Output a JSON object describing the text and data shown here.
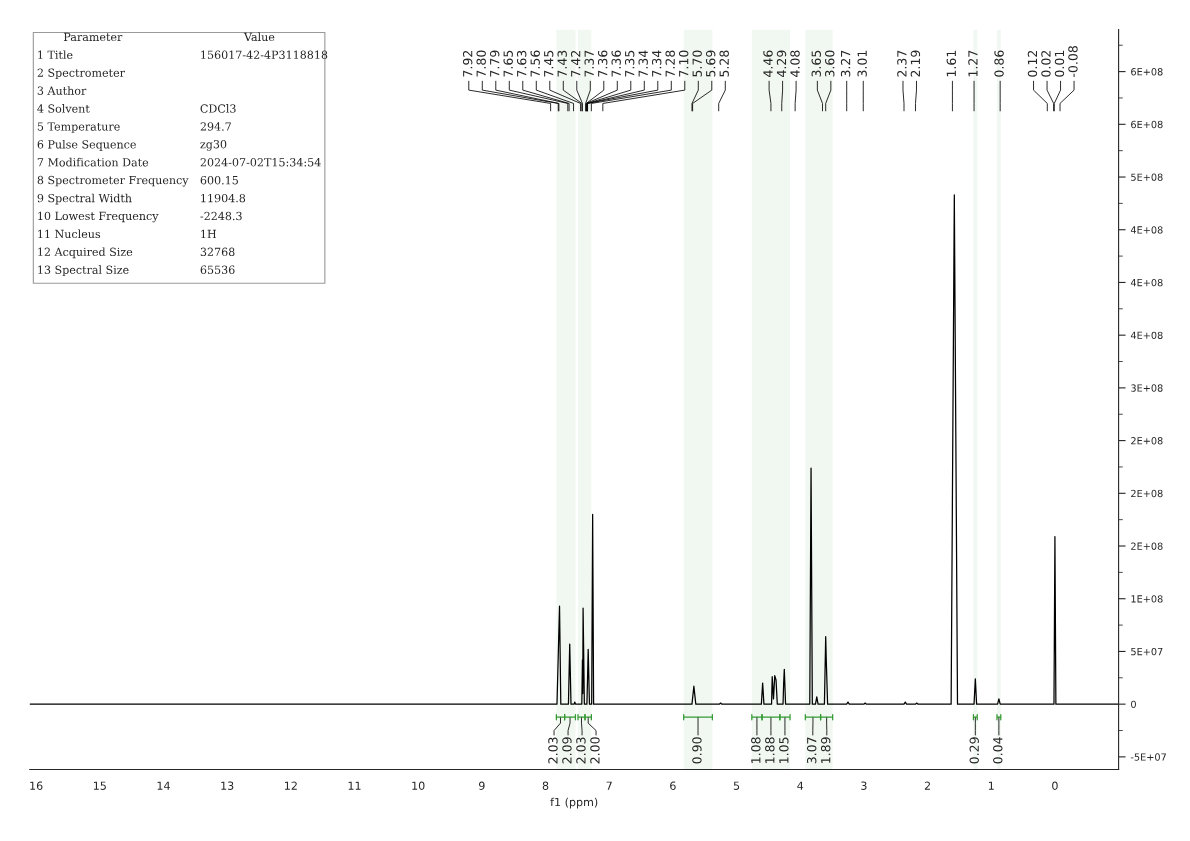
{
  "chart_data": {
    "type": "line",
    "xlabel": "f1 (ppm)",
    "xlim": [
      16.1,
      -1.0
    ],
    "xticks": [
      16,
      15,
      14,
      13,
      12,
      11,
      10,
      9,
      8,
      7,
      6,
      5,
      4,
      3,
      2,
      1,
      0
    ],
    "ylim": [
      -62000000,
      640000000
    ],
    "yticks": [
      {
        "value": -50000000,
        "label": "-5E+07"
      },
      {
        "value": -25000000,
        "label": null
      },
      {
        "value": 0,
        "label": "0"
      },
      {
        "value": 25000000,
        "label": null
      },
      {
        "value": 50000000,
        "label": "5E+07"
      },
      {
        "value": 75000000,
        "label": null
      },
      {
        "value": 100000000,
        "label": "1E+08"
      },
      {
        "value": 125000000,
        "label": null
      },
      {
        "value": 150000000,
        "label": "2E+08"
      },
      {
        "value": 175000000,
        "label": null
      },
      {
        "value": 200000000,
        "label": "2E+08"
      },
      {
        "value": 225000000,
        "label": null
      },
      {
        "value": 250000000,
        "label": "2E+08"
      },
      {
        "value": 275000000,
        "label": null
      },
      {
        "value": 300000000,
        "label": "3E+08"
      },
      {
        "value": 325000000,
        "label": null
      },
      {
        "value": 350000000,
        "label": "4E+08"
      },
      {
        "value": 375000000,
        "label": null
      },
      {
        "value": 400000000,
        "label": "4E+08"
      },
      {
        "value": 425000000,
        "label": null
      },
      {
        "value": 450000000,
        "label": "4E+08"
      },
      {
        "value": 475000000,
        "label": null
      },
      {
        "value": 500000000,
        "label": "5E+08"
      },
      {
        "value": 525000000,
        "label": null
      },
      {
        "value": 550000000,
        "label": "6E+08"
      },
      {
        "value": 575000000,
        "label": null
      },
      {
        "value": 600000000,
        "label": "6E+08"
      },
      {
        "value": 625000000,
        "label": null
      }
    ],
    "grid": false,
    "tick_labels": "xy",
    "series": [
      {
        "color": "#000000",
        "x": [
          16.1,
          7.92,
          7.82,
          7.78,
          7.76,
          7.64,
          7.62,
          7.6,
          7.55,
          7.54,
          7.53,
          7.43,
          7.42,
          7.415,
          7.41,
          7.39,
          7.35,
          7.34,
          7.33,
          7.31,
          7.275,
          7.26,
          7.245,
          7.1,
          5.7,
          5.67,
          5.64,
          5.27,
          5.25,
          5.23,
          4.61,
          4.59,
          4.57,
          4.45,
          4.44,
          4.42,
          4.4,
          4.38,
          4.36,
          4.27,
          4.26,
          4.25,
          4.23,
          4.08,
          3.85,
          3.83,
          3.81,
          3.76,
          3.74,
          3.72,
          3.62,
          3.6,
          3.59,
          3.57,
          3.27,
          3.25,
          3.23,
          3.0,
          2.98,
          2.96,
          2.37,
          2.35,
          2.33,
          2.19,
          2.17,
          2.15,
          1.63,
          1.58,
          1.53,
          1.27,
          1.25,
          1.23,
          0.9,
          0.88,
          0.86,
          0.12,
          0.015,
          0.0,
          -0.015,
          -0.08,
          -1.0
        ],
        "values": [
          0,
          0,
          0,
          93000000,
          0,
          0,
          57000000,
          0,
          0,
          2000000,
          0,
          0,
          42000000,
          10000000,
          91000000,
          0,
          0,
          24000000,
          52000000,
          0,
          0,
          180000000,
          0,
          0,
          0,
          17000000,
          0,
          0,
          1000000,
          0,
          0,
          20000000,
          0,
          0,
          26000000,
          5000000,
          27000000,
          23000000,
          0,
          0,
          20000000,
          33000000,
          0,
          0,
          0,
          224000000,
          0,
          0,
          7000000,
          0,
          0,
          64000000,
          40000000,
          0,
          0,
          2000000,
          0,
          0,
          1000000,
          0,
          0,
          2000000,
          0,
          0,
          1000000,
          0,
          0,
          483000000,
          0,
          0,
          24000000,
          0,
          0,
          5000000,
          0,
          0,
          0,
          159000000,
          0,
          0,
          0
        ]
      }
    ],
    "annotations": [
      "Parameter\tValue",
      "1 Title\t156017-42-4P3118818",
      "2 Spectrometer",
      "3 Author",
      "4 Solvent\tCDCl3",
      "5 Temperature\t294.7",
      "6 Pulse Sequence\tzg30",
      "7 Modification Date\t2024-07-02T15:34:54",
      "8 Spectrometer Frequency\t600.15",
      "9 Spectral Width\t11904.8",
      "10 Lowest Frequency\t-2248.3",
      "11 Nucleus\t1H",
      "12 Acquired Size\t32768",
      "13 Spectral Size\t65536",
      {
        "text": "7.92",
        "x": 7.92
      },
      {
        "text": "7.80",
        "x": 7.8
      },
      {
        "text": "7.79",
        "x": 7.79
      },
      {
        "text": "7.65",
        "x": 7.65
      },
      {
        "text": "7.63",
        "x": 7.63
      },
      {
        "text": "7.56",
        "x": 7.56
      },
      {
        "text": "7.45",
        "x": 7.45
      },
      {
        "text": "7.43",
        "x": 7.43
      },
      {
        "text": "7.42",
        "x": 7.42
      },
      {
        "text": "7.37",
        "x": 7.37
      },
      {
        "text": "7.36",
        "x": 7.36
      },
      {
        "text": "7.36",
        "x": 7.36
      },
      {
        "text": "7.35",
        "x": 7.35
      },
      {
        "text": "7.34",
        "x": 7.34
      },
      {
        "text": "7.34",
        "x": 7.34
      },
      {
        "text": "7.28",
        "x": 7.28
      },
      {
        "text": "7.10",
        "x": 7.1
      },
      {
        "text": "5.70",
        "x": 5.7
      },
      {
        "text": "5.69",
        "x": 5.69
      },
      {
        "text": "5.28",
        "x": 5.28
      },
      {
        "text": "4.46",
        "x": 4.46
      },
      {
        "text": "4.29",
        "x": 4.29
      },
      {
        "text": "4.08",
        "x": 4.08
      },
      {
        "text": "3.65",
        "x": 3.65
      },
      {
        "text": "3.60",
        "x": 3.6
      },
      {
        "text": "3.27",
        "x": 3.27
      },
      {
        "text": "3.01",
        "x": 3.01
      },
      {
        "text": "2.37",
        "x": 2.37
      },
      {
        "text": "2.19",
        "x": 2.19
      },
      {
        "text": "1.61",
        "x": 1.61
      },
      {
        "text": "1.27",
        "x": 1.27
      },
      {
        "text": "0.86",
        "x": 0.86
      },
      {
        "text": "0.12",
        "x": 0.12
      },
      {
        "text": "0.02",
        "x": 0.02
      },
      {
        "text": "0.01",
        "x": 0.01
      },
      {
        "text": "-0.08",
        "x": -0.08
      }
    ],
    "bands": [
      {
        "axis": "x",
        "from": 7.83,
        "to": 7.7,
        "label": "2.03",
        "color": "#339933"
      },
      {
        "axis": "x",
        "from": 7.7,
        "to": 7.53,
        "label": "2.09",
        "color": "#339933"
      },
      {
        "axis": "x",
        "from": 7.49,
        "to": 7.38,
        "label": "2.03",
        "color": "#339933"
      },
      {
        "axis": "x",
        "from": 7.38,
        "to": 7.28,
        "label": "2.00",
        "color": "#339933"
      },
      {
        "axis": "x",
        "from": 5.83,
        "to": 5.38,
        "label": "0.90",
        "color": "#339933"
      },
      {
        "axis": "x",
        "from": 4.76,
        "to": 4.6,
        "label": "1.08",
        "color": "#339933"
      },
      {
        "axis": "x",
        "from": 4.6,
        "to": 4.32,
        "label": "1.88",
        "color": "#339933"
      },
      {
        "axis": "x",
        "from": 4.32,
        "to": 4.16,
        "label": "1.05",
        "color": "#339933"
      },
      {
        "axis": "x",
        "from": 3.92,
        "to": 3.68,
        "label": "3.07",
        "color": "#339933"
      },
      {
        "axis": "x",
        "from": 3.68,
        "to": 3.49,
        "label": "1.89",
        "color": "#339933"
      },
      {
        "axis": "x",
        "from": 1.28,
        "to": 1.22,
        "label": "0.29",
        "color": "#339933"
      },
      {
        "axis": "x",
        "from": 0.91,
        "to": 0.85,
        "label": "0.04",
        "color": "#339933"
      }
    ]
  }
}
